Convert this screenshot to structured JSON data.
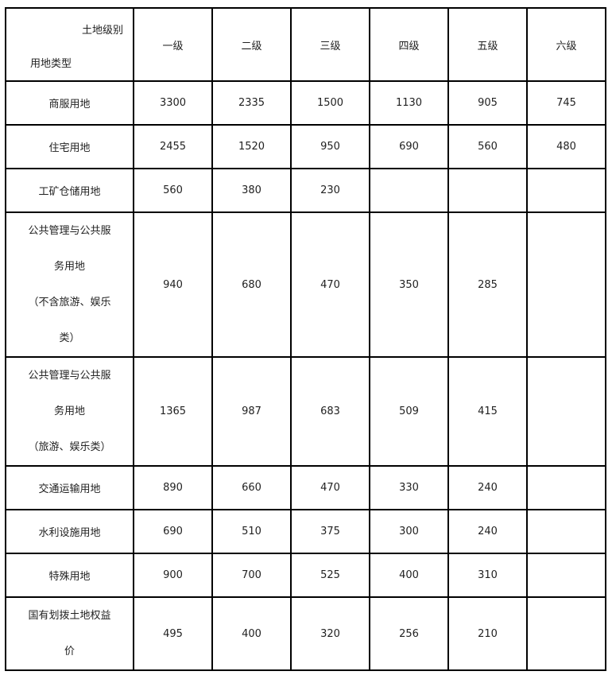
{
  "header": {
    "corner_top": "土地级别",
    "corner_bottom": "用地类型",
    "levels": [
      "一级",
      "二级",
      "三级",
      "四级",
      "五级",
      "六级"
    ]
  },
  "rows": [
    {
      "type": [
        "商服用地"
      ],
      "values": [
        "3300",
        "2335",
        "1500",
        "1130",
        "905",
        "745"
      ]
    },
    {
      "type": [
        "住宅用地"
      ],
      "values": [
        "2455",
        "1520",
        "950",
        "690",
        "560",
        "480"
      ]
    },
    {
      "type": [
        "工矿仓储用地"
      ],
      "values": [
        "560",
        "380",
        "230",
        "",
        "",
        ""
      ]
    },
    {
      "type": [
        "公共管理与公共服",
        "务用地",
        "（不含旅游、娱乐",
        "类）"
      ],
      "values": [
        "940",
        "680",
        "470",
        "350",
        "285",
        ""
      ]
    },
    {
      "type": [
        "公共管理与公共服",
        "务用地",
        "（旅游、娱乐类）"
      ],
      "values": [
        "1365",
        "987",
        "683",
        "509",
        "415",
        ""
      ]
    },
    {
      "type": [
        "交通运输用地"
      ],
      "values": [
        "890",
        "660",
        "470",
        "330",
        "240",
        ""
      ]
    },
    {
      "type": [
        "水利设施用地"
      ],
      "values": [
        "690",
        "510",
        "375",
        "300",
        "240",
        ""
      ]
    },
    {
      "type": [
        "特殊用地"
      ],
      "values": [
        "900",
        "700",
        "525",
        "400",
        "310",
        ""
      ]
    },
    {
      "type": [
        "国有划拨土地权益",
        "价"
      ],
      "values": [
        "495",
        "400",
        "320",
        "256",
        "210",
        ""
      ]
    }
  ]
}
